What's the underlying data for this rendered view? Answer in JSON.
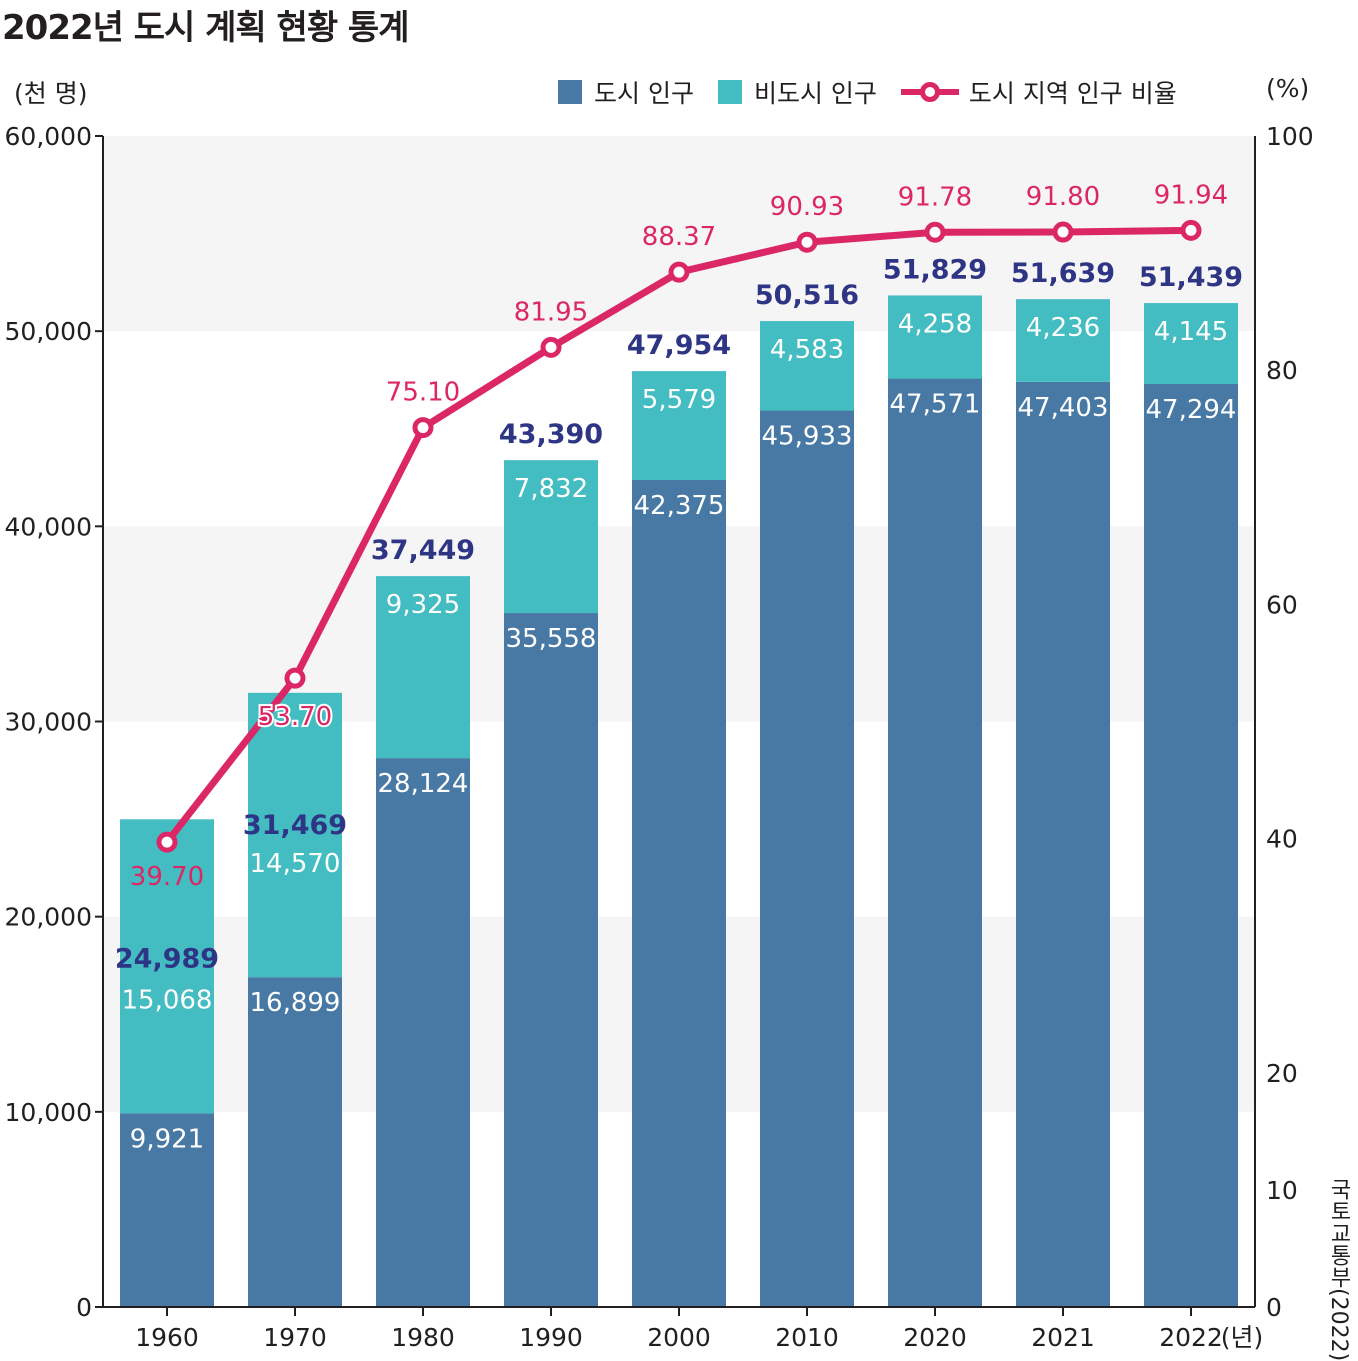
{
  "title": "2022년 도시 계획 현황 통계",
  "source": "국토교통부(2022)",
  "colors": {
    "urban": "#4879a4",
    "nonurban": "#43bcc2",
    "ratio_line": "#dc2767",
    "total_label": "#2f3585",
    "axis": "#231f20",
    "band": "#f5f5f5"
  },
  "legend": {
    "urban": "도시 인구",
    "nonurban": "비도시 인구",
    "ratio": "도시 지역 인구 비율"
  },
  "chart_data": {
    "type": "bar",
    "stacked": true,
    "title": "2022년 도시 계획 현황 통계",
    "categories": [
      "1960",
      "1970",
      "1980",
      "1990",
      "2000",
      "2010",
      "2020",
      "2021",
      "2022"
    ],
    "x_unit": "(년)",
    "left_axis": {
      "unit": "(천 명)",
      "ylim": [
        0,
        60000
      ],
      "ticks": [
        "0",
        "10,000",
        "20,000",
        "30,000",
        "40,000",
        "50,000",
        "60,000"
      ]
    },
    "right_axis": {
      "unit": "(%)",
      "ylim": [
        0,
        100
      ],
      "ticks": [
        "0",
        "10",
        "20",
        "40",
        "60",
        "80",
        "100"
      ]
    },
    "series": [
      {
        "name": "도시 인구",
        "type": "bar",
        "axis": "left",
        "values": [
          9921,
          16899,
          28124,
          35558,
          42375,
          45933,
          47571,
          47403,
          47294
        ],
        "labels": [
          "9,921",
          "16,899",
          "28,124",
          "35,558",
          "42,375",
          "45,933",
          "47,571",
          "47,403",
          "47,294"
        ]
      },
      {
        "name": "비도시 인구",
        "type": "bar",
        "axis": "left",
        "values": [
          15068,
          14570,
          9325,
          7832,
          5579,
          4583,
          4258,
          4236,
          4145
        ],
        "labels": [
          "15,068",
          "14,570",
          "9,325",
          "7,832",
          "5,579",
          "4,583",
          "4,258",
          "4,236",
          "4,145"
        ]
      },
      {
        "name": "도시 지역 인구 비율",
        "type": "line",
        "axis": "right",
        "values": [
          39.7,
          53.7,
          75.1,
          81.95,
          88.37,
          90.93,
          91.78,
          91.8,
          91.94
        ],
        "labels": [
          "39.70",
          "53.70",
          "75.10",
          "81.95",
          "88.37",
          "90.93",
          "91.78",
          "91.80",
          "91.94"
        ]
      }
    ],
    "totals": [
      "24,989",
      "31,469",
      "37,449",
      "43,390",
      "47,954",
      "50,516",
      "51,829",
      "51,639",
      "51,439"
    ],
    "grid": "alternating horizontal bands",
    "legend_position": "top-right"
  }
}
